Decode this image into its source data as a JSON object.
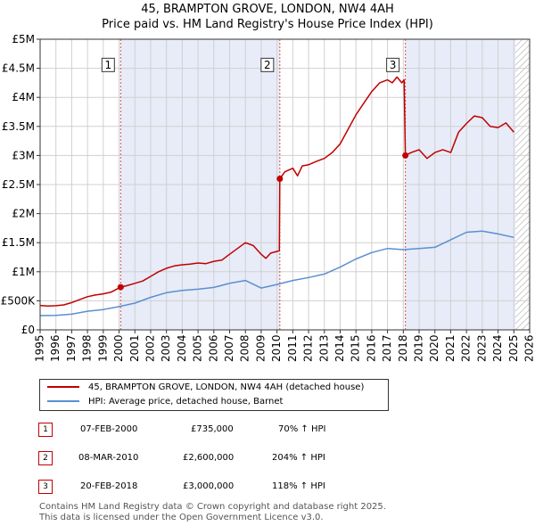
{
  "header": {
    "title_line1": "45, BRAMPTON GROVE, LONDON, NW4 4AH",
    "title_line2": "Price paid vs. HM Land Registry's House Price Index (HPI)"
  },
  "colors": {
    "property": "#c00000",
    "hpi": "#5b8fd0",
    "shade": "#e7ecf8",
    "grid": "#d0d0d0",
    "marker_line": "#d94c4c"
  },
  "chart_data": {
    "type": "line",
    "title": "Price paid vs. HM Land Registry's House Price Index (HPI)",
    "xlim": [
      1995,
      2026
    ],
    "ylim": [
      0,
      5000000
    ],
    "x_ticks": [
      1995,
      1996,
      1997,
      1998,
      1999,
      2000,
      2001,
      2002,
      2003,
      2004,
      2005,
      2006,
      2007,
      2008,
      2009,
      2010,
      2011,
      2012,
      2013,
      2014,
      2015,
      2016,
      2017,
      2018,
      2019,
      2020,
      2021,
      2022,
      2023,
      2024,
      2025,
      2026
    ],
    "y_ticks": [
      {
        "value": 0,
        "label": "£0"
      },
      {
        "value": 500000,
        "label": "£500K"
      },
      {
        "value": 1000000,
        "label": "£1M"
      },
      {
        "value": 1500000,
        "label": "£1.5M"
      },
      {
        "value": 2000000,
        "label": "£2M"
      },
      {
        "value": 2500000,
        "label": "£2.5M"
      },
      {
        "value": 3000000,
        "label": "£3M"
      },
      {
        "value": 3500000,
        "label": "£3.5M"
      },
      {
        "value": 4000000,
        "label": "£4M"
      },
      {
        "value": 4500000,
        "label": "£4.5M"
      },
      {
        "value": 5000000,
        "label": "£5M"
      }
    ],
    "grid": true,
    "shaded_spans": [
      [
        2000.1,
        2010.18
      ],
      [
        2018.13,
        2025.1
      ]
    ],
    "hatched_from": 2025.1,
    "series": [
      {
        "name": "45, BRAMPTON GROVE, LONDON, NW4 4AH (detached house)",
        "color": "#c00000",
        "points": [
          [
            1995.0,
            420000
          ],
          [
            1995.5,
            410000
          ],
          [
            1996.0,
            415000
          ],
          [
            1996.5,
            430000
          ],
          [
            1997.0,
            470000
          ],
          [
            1997.5,
            520000
          ],
          [
            1998.0,
            570000
          ],
          [
            1998.5,
            600000
          ],
          [
            1999.0,
            620000
          ],
          [
            1999.5,
            650000
          ],
          [
            2000.1,
            735000
          ],
          [
            2000.5,
            760000
          ],
          [
            2001.0,
            800000
          ],
          [
            2001.5,
            840000
          ],
          [
            2002.0,
            920000
          ],
          [
            2002.5,
            1000000
          ],
          [
            2003.0,
            1060000
          ],
          [
            2003.5,
            1100000
          ],
          [
            2004.0,
            1120000
          ],
          [
            2004.5,
            1130000
          ],
          [
            2005.0,
            1150000
          ],
          [
            2005.5,
            1140000
          ],
          [
            2006.0,
            1180000
          ],
          [
            2006.5,
            1200000
          ],
          [
            2007.0,
            1300000
          ],
          [
            2007.5,
            1400000
          ],
          [
            2008.0,
            1500000
          ],
          [
            2008.5,
            1450000
          ],
          [
            2009.0,
            1300000
          ],
          [
            2009.3,
            1230000
          ],
          [
            2009.6,
            1320000
          ],
          [
            2010.0,
            1350000
          ],
          [
            2010.15,
            1360000
          ],
          [
            2010.18,
            2600000
          ],
          [
            2010.5,
            2720000
          ],
          [
            2011.0,
            2780000
          ],
          [
            2011.3,
            2650000
          ],
          [
            2011.6,
            2820000
          ],
          [
            2012.0,
            2840000
          ],
          [
            2012.5,
            2900000
          ],
          [
            2013.0,
            2950000
          ],
          [
            2013.5,
            3050000
          ],
          [
            2014.0,
            3200000
          ],
          [
            2014.5,
            3450000
          ],
          [
            2015.0,
            3700000
          ],
          [
            2015.5,
            3900000
          ],
          [
            2016.0,
            4100000
          ],
          [
            2016.5,
            4250000
          ],
          [
            2017.0,
            4300000
          ],
          [
            2017.3,
            4250000
          ],
          [
            2017.6,
            4350000
          ],
          [
            2017.9,
            4250000
          ],
          [
            2018.05,
            4300000
          ],
          [
            2018.13,
            3000000
          ],
          [
            2018.5,
            3050000
          ],
          [
            2019.0,
            3100000
          ],
          [
            2019.5,
            2950000
          ],
          [
            2020.0,
            3050000
          ],
          [
            2020.5,
            3100000
          ],
          [
            2021.0,
            3050000
          ],
          [
            2021.5,
            3400000
          ],
          [
            2022.0,
            3550000
          ],
          [
            2022.5,
            3680000
          ],
          [
            2023.0,
            3650000
          ],
          [
            2023.5,
            3500000
          ],
          [
            2024.0,
            3480000
          ],
          [
            2024.5,
            3560000
          ],
          [
            2025.0,
            3400000
          ]
        ]
      },
      {
        "name": "HPI: Average price, detached house, Barnet",
        "color": "#5b8fd0",
        "points": [
          [
            1995.0,
            245000
          ],
          [
            1996.0,
            250000
          ],
          [
            1997.0,
            270000
          ],
          [
            1998.0,
            320000
          ],
          [
            1999.0,
            350000
          ],
          [
            2000.0,
            400000
          ],
          [
            2001.0,
            460000
          ],
          [
            2002.0,
            560000
          ],
          [
            2003.0,
            640000
          ],
          [
            2004.0,
            680000
          ],
          [
            2005.0,
            700000
          ],
          [
            2006.0,
            730000
          ],
          [
            2007.0,
            800000
          ],
          [
            2008.0,
            850000
          ],
          [
            2009.0,
            720000
          ],
          [
            2010.0,
            780000
          ],
          [
            2011.0,
            850000
          ],
          [
            2012.0,
            900000
          ],
          [
            2013.0,
            960000
          ],
          [
            2014.0,
            1080000
          ],
          [
            2015.0,
            1220000
          ],
          [
            2016.0,
            1330000
          ],
          [
            2017.0,
            1400000
          ],
          [
            2018.0,
            1380000
          ],
          [
            2019.0,
            1400000
          ],
          [
            2020.0,
            1420000
          ],
          [
            2021.0,
            1550000
          ],
          [
            2022.0,
            1680000
          ],
          [
            2023.0,
            1700000
          ],
          [
            2024.0,
            1650000
          ],
          [
            2025.0,
            1590000
          ]
        ]
      }
    ],
    "sale_markers": [
      {
        "label": "1",
        "x": 2000.1,
        "y": 735000
      },
      {
        "label": "2",
        "x": 2010.18,
        "y": 2600000
      },
      {
        "label": "3",
        "x": 2018.13,
        "y": 3000000
      }
    ],
    "marker_box_y": 4550000
  },
  "legend": {
    "property_label": "45, BRAMPTON GROVE, LONDON, NW4 4AH (detached house)",
    "hpi_label": "HPI: Average price, detached house, Barnet"
  },
  "sales": [
    {
      "num": "1",
      "date": "07-FEB-2000",
      "price": "£735,000",
      "hpi": "70% ↑ HPI"
    },
    {
      "num": "2",
      "date": "08-MAR-2010",
      "price": "£2,600,000",
      "hpi": "204% ↑ HPI"
    },
    {
      "num": "3",
      "date": "20-FEB-2018",
      "price": "£3,000,000",
      "hpi": "118% ↑ HPI"
    }
  ],
  "footer": {
    "line1": "Contains HM Land Registry data © Crown copyright and database right 2025.",
    "line2": "This data is licensed under the Open Government Licence v3.0."
  }
}
